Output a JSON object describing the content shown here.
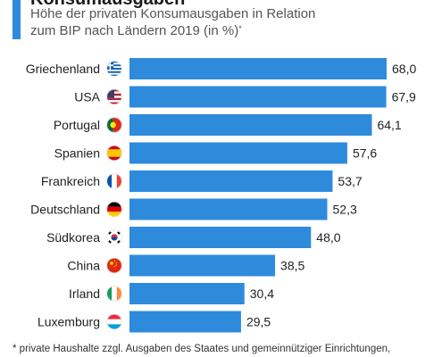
{
  "header": {
    "title": "Konsumausgaben",
    "subtitle": "Höhe der privaten Konsumausgaben in Relation\nzum BIP nach Ländern 2019 (in %)",
    "subtitle_mark": "*"
  },
  "footnote": "* private Haushalte zzgl. Ausgaben des Staates und gemeinnütziger Einrichtungen,",
  "colors": {
    "bar": "#2e8bdc",
    "accent": "#2e8bdc"
  },
  "chart_data": {
    "type": "bar",
    "orientation": "horizontal",
    "categories": [
      "Griechenland",
      "USA",
      "Portugal",
      "Spanien",
      "Frankreich",
      "Deutschland",
      "Südkorea",
      "China",
      "Irland",
      "Luxemburg"
    ],
    "values": [
      68.0,
      67.9,
      64.1,
      57.6,
      53.7,
      52.3,
      48.0,
      38.5,
      30.4,
      29.5
    ],
    "value_labels": [
      "68,0",
      "67,9",
      "64,1",
      "57,6",
      "53,7",
      "52,3",
      "48,0",
      "38,5",
      "30,4",
      "29,5"
    ],
    "flags": [
      "greece-flag-icon",
      "usa-flag-icon",
      "portugal-flag-icon",
      "spain-flag-icon",
      "france-flag-icon",
      "germany-flag-icon",
      "south-korea-flag-icon",
      "china-flag-icon",
      "ireland-flag-icon",
      "luxembourg-flag-icon"
    ],
    "xlim": [
      0,
      68
    ],
    "grid": false,
    "legend": "none"
  }
}
